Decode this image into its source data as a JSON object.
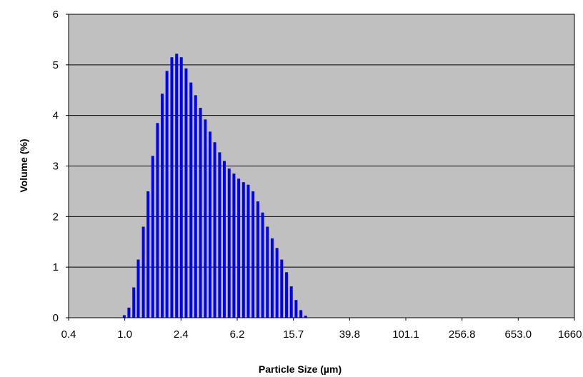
{
  "chart_data": {
    "type": "bar",
    "title": "",
    "xlabel": "Particle Size (µm)",
    "ylabel": "Volume (%)",
    "x_tick_labels": [
      "0.4",
      "1.0",
      "2.4",
      "6.2",
      "15.7",
      "39.8",
      "101.1",
      "256.8",
      "653.0",
      "1660.0"
    ],
    "y_ticks": [
      0,
      1,
      2,
      3,
      4,
      5,
      6
    ],
    "ylim": [
      0,
      6
    ],
    "x_scale": "log",
    "xlim": [
      0.4,
      1660.0
    ],
    "grid": "horizontal",
    "legend": "none",
    "bar_color": "#0000ff",
    "plot_background": "#c0c0c0",
    "series": [
      {
        "x": [
          1.0,
          1.08,
          1.17,
          1.26,
          1.37,
          1.48,
          1.6,
          1.73,
          1.87,
          2.02,
          2.19,
          2.37,
          2.56,
          2.77,
          3.0,
          3.24,
          3.51,
          3.8,
          4.11,
          4.44,
          4.81,
          5.2,
          5.63,
          6.09,
          6.59,
          7.13,
          7.71,
          8.34,
          9.03,
          9.77,
          10.57,
          11.43,
          12.37,
          13.38,
          14.48,
          15.67,
          16.95,
          18.34,
          19.84,
          21.47,
          23.23,
          25.13,
          27.19,
          29.42
        ],
        "values": [
          0.05,
          0.2,
          0.6,
          1.15,
          1.8,
          2.5,
          3.2,
          3.85,
          4.43,
          4.88,
          5.15,
          5.22,
          5.15,
          4.93,
          4.65,
          4.4,
          4.15,
          3.92,
          3.68,
          3.47,
          3.27,
          3.1,
          2.95,
          2.85,
          2.75,
          2.68,
          2.63,
          2.5,
          2.3,
          2.08,
          1.8,
          1.57,
          1.38,
          1.15,
          0.9,
          0.62,
          0.35,
          0.15,
          0.04,
          0,
          0,
          0,
          0,
          0
        ]
      }
    ]
  }
}
